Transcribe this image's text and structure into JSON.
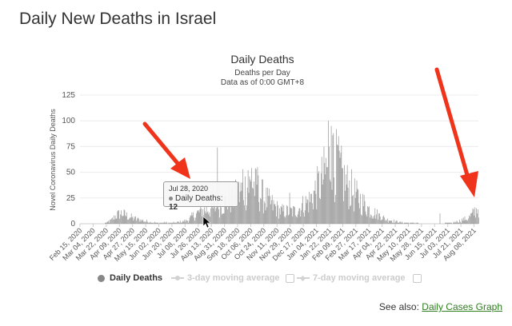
{
  "page": {
    "title": "Daily New Deaths in Israel",
    "see_also_prefix": "See also: ",
    "see_also_link": "Daily Cases Graph"
  },
  "chart_data": {
    "type": "bar",
    "title": "Daily Deaths",
    "subtitle1": "Deaths per Day",
    "subtitle2": "Data as of 0:00 GMT+8",
    "ylabel": "Novel Coronavirus Daily Deaths",
    "xlabel": "",
    "ylim": [
      0,
      125
    ],
    "yticks": [
      0,
      25,
      50,
      75,
      100,
      125
    ],
    "grid": true,
    "bar_color": "#8c8c8c",
    "x_tick_labels": [
      "Feb 15, 2020",
      "Mar 04, 2020",
      "Mar 22, 2020",
      "Apr 09, 2020",
      "Apr 27, 2020",
      "May 15, 2020",
      "Jun 02, 2020",
      "Jun 20, 2020",
      "Jul 08, 2020",
      "Jul 26, 2020",
      "Aug 13, 2020",
      "Aug 31, 2020",
      "Sep 18, 2020",
      "Oct 06, 2020",
      "Oct 24, 2020",
      "Nov 11, 2020",
      "Nov 29, 2020",
      "Dec 17, 2020",
      "Jan 04, 2021",
      "Jan 22, 2021",
      "Feb 09, 2021",
      "Feb 27, 2021",
      "Mar 17, 2021",
      "Apr 04, 2021",
      "Apr 22, 2021",
      "May 10, 2021",
      "May 28, 2021",
      "Jun 15, 2021",
      "Jul 03, 2021",
      "Jul 21, 2021",
      "Aug 08, 2021"
    ],
    "series": [
      {
        "name": "Daily Deaths",
        "keyframes": [
          [
            "Feb 15, 2020",
            0
          ],
          [
            "Mar 18, 2020",
            0
          ],
          [
            "Mar 28, 2020",
            3
          ],
          [
            "Apr 04, 2020",
            8
          ],
          [
            "Apr 12, 2020",
            10
          ],
          [
            "Apr 25, 2020",
            6
          ],
          [
            "May 10, 2020",
            3
          ],
          [
            "May 30, 2020",
            1
          ],
          [
            "Jun 25, 2020",
            1
          ],
          [
            "Jul 10, 2020",
            3
          ],
          [
            "Jul 28, 2020",
            12
          ],
          [
            "Aug 20, 2020",
            16
          ],
          [
            "Sep 10, 2020",
            24
          ],
          [
            "Sep 28, 2020",
            34
          ],
          [
            "Oct 08, 2020",
            38
          ],
          [
            "Oct 25, 2020",
            24
          ],
          [
            "Nov 15, 2020",
            12
          ],
          [
            "Dec 05, 2020",
            12
          ],
          [
            "Dec 25, 2020",
            22
          ],
          [
            "Jan 10, 2021",
            40
          ],
          [
            "Jan 22, 2021",
            60
          ],
          [
            "Jan 30, 2021",
            58
          ],
          [
            "Feb 12, 2021",
            40
          ],
          [
            "Mar 01, 2021",
            25
          ],
          [
            "Mar 20, 2021",
            12
          ],
          [
            "Apr 10, 2021",
            4
          ],
          [
            "May 01, 2021",
            1
          ],
          [
            "Jun 15, 2021",
            0
          ],
          [
            "Jul 10, 2021",
            1
          ],
          [
            "Jul 30, 2021",
            5
          ],
          [
            "Aug 08, 2021",
            11
          ],
          [
            "Aug 14, 2021",
            16
          ]
        ],
        "spikes": [
          [
            "Aug 21, 2020",
            74
          ],
          [
            "Sep 25, 2020",
            53
          ],
          [
            "Oct 02, 2020",
            52
          ],
          [
            "Oct 07, 2020",
            54
          ],
          [
            "Oct 15, 2020",
            55
          ],
          [
            "Nov 28, 2020",
            30
          ],
          [
            "Jan 17, 2021",
            64
          ],
          [
            "Jan 20, 2021",
            100
          ],
          [
            "Jan 24, 2021",
            95
          ],
          [
            "Jan 27, 2021",
            88
          ],
          [
            "Feb 02, 2021",
            76
          ],
          [
            "Jun 22, 2021",
            10
          ]
        ]
      }
    ],
    "tooltip": {
      "date": "Jul 28, 2020",
      "series": "Daily Deaths",
      "value": 12
    },
    "legend": {
      "position": "bottom",
      "items": [
        "Daily Deaths",
        "3-day moving average",
        "7-day moving average"
      ]
    },
    "annotations": [
      {
        "type": "arrow",
        "color": "#f0341b",
        "points_to": "Jul 28, 2020"
      },
      {
        "type": "arrow",
        "color": "#f0341b",
        "points_to": "Aug 14, 2021"
      }
    ]
  }
}
